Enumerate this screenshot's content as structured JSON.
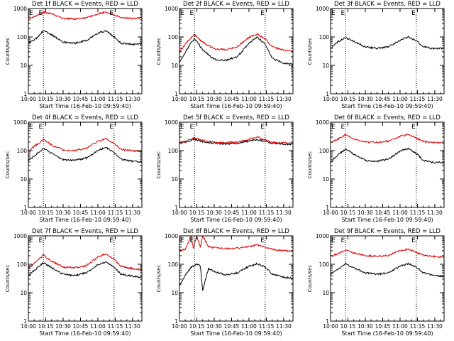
{
  "figure": {
    "background": "#ffffff",
    "axis_color": "#000000",
    "events_color": "#000000",
    "lld_color": "#dd0000"
  },
  "chart_data": [
    {
      "type": "line",
      "title": "Det 1f BLACK = Events, RED = LLD",
      "xlabel": "Start Time (16-Feb-10 09:59:40)",
      "ylabel": "Counts/sec",
      "xlim": [
        "10:00",
        "11:38"
      ],
      "ylim": [
        1,
        1000
      ],
      "yscale": "log",
      "x_ticks": [
        "10:00",
        "10:15",
        "10:30",
        "10:45",
        "11:00",
        "11:15",
        "11:30"
      ],
      "y_ticks": [
        "1",
        "10",
        "100",
        "1000"
      ],
      "markers": [
        {
          "time": "10:13",
          "label": "E"
        },
        {
          "time": "11:14",
          "label": "E"
        }
      ],
      "series": [
        {
          "name": "Events",
          "color": "#000000",
          "x": [
            "10:00",
            "10:07",
            "10:13",
            "10:20",
            "10:30",
            "10:40",
            "10:50",
            "11:00",
            "11:07",
            "11:14",
            "11:20",
            "11:30",
            "11:38"
          ],
          "values": [
            60,
            90,
            170,
            120,
            65,
            60,
            75,
            135,
            165,
            100,
            60,
            55,
            58
          ]
        },
        {
          "name": "LLD",
          "color": "#dd0000",
          "x": [
            "10:00",
            "10:07",
            "10:13",
            "10:20",
            "10:30",
            "10:40",
            "10:50",
            "11:00",
            "11:07",
            "11:14",
            "11:20",
            "11:30",
            "11:38"
          ],
          "values": [
            450,
            550,
            750,
            650,
            450,
            430,
            470,
            650,
            760,
            600,
            480,
            450,
            460
          ]
        }
      ]
    },
    {
      "type": "line",
      "title": "Det 2f BLACK = Events, RED = LLD",
      "xlabel": "Start Time (16-Feb-10 09:59:40)",
      "ylabel": "Counts/sec",
      "xlim": [
        "10:00",
        "11:38"
      ],
      "ylim": [
        1,
        1000
      ],
      "yscale": "log",
      "x_ticks": [
        "10:00",
        "10:15",
        "10:30",
        "10:45",
        "11:00",
        "11:15",
        "11:30"
      ],
      "y_ticks": [
        "1",
        "10",
        "100",
        "1000"
      ],
      "markers": [
        {
          "time": "10:13",
          "label": "E"
        },
        {
          "time": "11:14",
          "label": "E"
        }
      ],
      "series": [
        {
          "name": "Events",
          "color": "#000000",
          "x": [
            "10:00",
            "10:07",
            "10:13",
            "10:20",
            "10:30",
            "10:40",
            "10:50",
            "11:00",
            "11:07",
            "11:14",
            "11:20",
            "11:30",
            "11:38"
          ],
          "values": [
            12,
            40,
            90,
            35,
            16,
            15,
            20,
            60,
            100,
            55,
            18,
            12,
            11
          ]
        },
        {
          "name": "LLD",
          "color": "#dd0000",
          "x": [
            "10:00",
            "10:07",
            "10:13",
            "10:20",
            "10:30",
            "10:40",
            "10:50",
            "11:00",
            "11:07",
            "11:14",
            "11:20",
            "11:30",
            "11:38"
          ],
          "values": [
            30,
            70,
            120,
            65,
            38,
            35,
            45,
            95,
            130,
            85,
            45,
            34,
            32
          ]
        }
      ]
    },
    {
      "type": "line",
      "title": "Det 3f BLACK = Events, RED = LLD",
      "xlabel": "Start Time (16-Feb-10 09:59:40)",
      "ylabel": "Counts/sec",
      "xlim": [
        "10:00",
        "11:38"
      ],
      "ylim": [
        1,
        1000
      ],
      "yscale": "log",
      "x_ticks": [
        "10:00",
        "10:15",
        "10:30",
        "10:45",
        "11:00",
        "11:15",
        "11:30"
      ],
      "y_ticks": [
        "1",
        "10",
        "100",
        "1000"
      ],
      "markers": [
        {
          "time": "10:13",
          "label": "E"
        },
        {
          "time": "11:14",
          "label": "E"
        }
      ],
      "series": [
        {
          "name": "Events",
          "color": "#000000",
          "x": [
            "10:00",
            "10:07",
            "10:13",
            "10:20",
            "10:30",
            "10:40",
            "10:50",
            "11:00",
            "11:07",
            "11:14",
            "11:20",
            "11:30",
            "11:38"
          ],
          "values": [
            40,
            70,
            95,
            70,
            45,
            40,
            45,
            75,
            100,
            75,
            45,
            38,
            40
          ]
        }
      ]
    },
    {
      "type": "line",
      "title": "Det 4f BLACK = Events, RED = LLD",
      "xlabel": "Start Time (16-Feb-10 09:59:40)",
      "ylabel": "Counts/sec",
      "xlim": [
        "10:00",
        "11:38"
      ],
      "ylim": [
        1,
        1000
      ],
      "yscale": "log",
      "x_ticks": [
        "10:00",
        "10:15",
        "10:30",
        "10:45",
        "11:00",
        "11:15",
        "11:30"
      ],
      "y_ticks": [
        "1",
        "10",
        "100",
        "1000"
      ],
      "markers": [
        {
          "time": "10:13",
          "label": "E"
        },
        {
          "time": "11:14",
          "label": "E"
        }
      ],
      "series": [
        {
          "name": "Events",
          "color": "#000000",
          "x": [
            "10:00",
            "10:07",
            "10:13",
            "10:20",
            "10:30",
            "10:40",
            "10:50",
            "11:00",
            "11:07",
            "11:14",
            "11:20",
            "11:30",
            "11:38"
          ],
          "values": [
            45,
            75,
            120,
            80,
            48,
            45,
            55,
            100,
            130,
            85,
            50,
            42,
            40
          ]
        },
        {
          "name": "LLD",
          "color": "#dd0000",
          "x": [
            "10:00",
            "10:07",
            "10:13",
            "10:20",
            "10:30",
            "10:40",
            "10:50",
            "11:00",
            "11:07",
            "11:14",
            "11:20",
            "11:30",
            "11:38"
          ],
          "values": [
            100,
            160,
            240,
            160,
            105,
            100,
            120,
            210,
            260,
            180,
            110,
            100,
            95
          ]
        }
      ]
    },
    {
      "type": "line",
      "title": "Det 5f BLACK = Events, RED = LLD",
      "xlabel": "Start Time (16-Feb-10 09:59:40)",
      "ylabel": "Counts/sec",
      "xlim": [
        "10:00",
        "11:38"
      ],
      "ylim": [
        1,
        1000
      ],
      "yscale": "log",
      "x_ticks": [
        "10:00",
        "10:15",
        "10:30",
        "10:45",
        "11:00",
        "11:15",
        "11:30"
      ],
      "y_ticks": [
        "1",
        "10",
        "100",
        "1000"
      ],
      "markers": [
        {
          "time": "10:13",
          "label": "E"
        },
        {
          "time": "11:14",
          "label": "E"
        }
      ],
      "series": [
        {
          "name": "Events",
          "color": "#000000",
          "x": [
            "10:00",
            "10:07",
            "10:13",
            "10:20",
            "10:30",
            "10:40",
            "10:50",
            "11:00",
            "11:07",
            "11:14",
            "11:20",
            "11:30",
            "11:38"
          ],
          "values": [
            180,
            210,
            250,
            210,
            180,
            175,
            180,
            220,
            250,
            210,
            180,
            170,
            165
          ]
        },
        {
          "name": "LLD",
          "color": "#dd0000",
          "x": [
            "10:00",
            "10:07",
            "10:13",
            "10:20",
            "10:30",
            "10:40",
            "10:50",
            "11:00",
            "11:07",
            "11:14",
            "11:20",
            "11:30",
            "11:38"
          ],
          "values": [
            190,
            230,
            280,
            230,
            195,
            190,
            200,
            250,
            300,
            240,
            195,
            185,
            180
          ]
        }
      ]
    },
    {
      "type": "line",
      "title": "Det 6f BLACK = Events, RED = LLD",
      "xlabel": "Start Time (16-Feb-10 09:59:40)",
      "ylabel": "Counts/sec",
      "xlim": [
        "10:00",
        "11:38"
      ],
      "ylim": [
        1,
        1000
      ],
      "yscale": "log",
      "x_ticks": [
        "10:00",
        "10:15",
        "10:30",
        "10:45",
        "11:00",
        "11:15",
        "11:30"
      ],
      "y_ticks": [
        "1",
        "10",
        "100",
        "1000"
      ],
      "markers": [
        {
          "time": "10:13",
          "label": "E"
        },
        {
          "time": "11:14",
          "label": "E"
        }
      ],
      "series": [
        {
          "name": "Events",
          "color": "#000000",
          "x": [
            "10:00",
            "10:07",
            "10:13",
            "10:20",
            "10:30",
            "10:40",
            "10:50",
            "11:00",
            "11:07",
            "11:14",
            "11:20",
            "11:30",
            "11:38"
          ],
          "values": [
            40,
            75,
            115,
            75,
            45,
            42,
            50,
            95,
            120,
            80,
            45,
            38,
            38
          ]
        },
        {
          "name": "LLD",
          "color": "#dd0000",
          "x": [
            "10:00",
            "10:07",
            "10:13",
            "10:20",
            "10:30",
            "10:40",
            "10:50",
            "11:00",
            "11:07",
            "11:14",
            "11:20",
            "11:30",
            "11:38"
          ],
          "values": [
            190,
            260,
            360,
            260,
            200,
            195,
            215,
            320,
            370,
            280,
            210,
            190,
            185
          ]
        }
      ]
    },
    {
      "type": "line",
      "title": "Det 7f BLACK = Events, RED = LLD",
      "xlabel": "Start Time (16-Feb-10 09:59:40)",
      "ylabel": "Counts/sec",
      "xlim": [
        "10:00",
        "11:38"
      ],
      "ylim": [
        1,
        1000
      ],
      "yscale": "log",
      "x_ticks": [
        "10:00",
        "10:15",
        "10:30",
        "10:45",
        "11:00",
        "11:15",
        "11:30"
      ],
      "y_ticks": [
        "1",
        "10",
        "100",
        "1000"
      ],
      "markers": [
        {
          "time": "10:13",
          "label": "E"
        },
        {
          "time": "11:14",
          "label": "E"
        }
      ],
      "series": [
        {
          "name": "Events",
          "color": "#000000",
          "x": [
            "10:00",
            "10:07",
            "10:13",
            "10:20",
            "10:30",
            "10:40",
            "10:50",
            "11:00",
            "11:07",
            "11:14",
            "11:20",
            "11:30",
            "11:38"
          ],
          "values": [
            40,
            70,
            115,
            75,
            45,
            40,
            50,
            95,
            120,
            80,
            45,
            38,
            35
          ]
        },
        {
          "name": "LLD",
          "color": "#dd0000",
          "x": [
            "10:00",
            "10:07",
            "10:13",
            "10:20",
            "10:30",
            "10:40",
            "10:50",
            "11:00",
            "11:07",
            "11:14",
            "11:20",
            "11:30",
            "11:38"
          ],
          "values": [
            70,
            130,
            210,
            130,
            80,
            75,
            90,
            180,
            240,
            150,
            85,
            70,
            65
          ]
        }
      ]
    },
    {
      "type": "line",
      "title": "Det 8f BLACK = Events, RED = LLD",
      "xlabel": "Start Time (16-Feb-10 09:59:40)",
      "ylabel": "Counts/sec",
      "xlim": [
        "10:00",
        "11:38"
      ],
      "ylim": [
        1,
        1000
      ],
      "yscale": "log",
      "x_ticks": [
        "10:00",
        "10:15",
        "10:30",
        "10:45",
        "11:00",
        "11:15",
        "11:30"
      ],
      "y_ticks": [
        "1",
        "10",
        "100",
        "1000"
      ],
      "markers": [
        {
          "time": "10:13",
          "label": "E"
        },
        {
          "time": "11:14",
          "label": "E"
        }
      ],
      "series": [
        {
          "name": "Events",
          "color": "#000000",
          "x": [
            "10:00",
            "10:05",
            "10:10",
            "10:15",
            "10:18",
            "10:20",
            "10:25",
            "10:30",
            "10:40",
            "10:50",
            "11:00",
            "11:07",
            "11:14",
            "11:20",
            "11:30",
            "11:38"
          ],
          "values": [
            18,
            40,
            80,
            100,
            90,
            12,
            70,
            55,
            42,
            50,
            85,
            105,
            80,
            45,
            35,
            32
          ]
        },
        {
          "name": "LLD",
          "color": "#dd0000",
          "x": [
            "10:00",
            "10:05",
            "10:10",
            "10:12",
            "10:15",
            "10:18",
            "10:20",
            "10:25",
            "10:30",
            "10:40",
            "10:50",
            "11:00",
            "11:07",
            "11:14",
            "11:20",
            "11:30",
            "11:38"
          ],
          "values": [
            300,
            330,
            1000,
            360,
            1000,
            380,
            1000,
            420,
            380,
            360,
            370,
            420,
            480,
            400,
            340,
            300,
            290
          ]
        }
      ]
    },
    {
      "type": "line",
      "title": "Det 9f BLACK = Events, RED = LLD",
      "xlabel": "Start Time (16-Feb-10 09:59:40)",
      "ylabel": "Counts/sec",
      "xlim": [
        "10:00",
        "11:38"
      ],
      "ylim": [
        1,
        1000
      ],
      "yscale": "log",
      "x_ticks": [
        "10:00",
        "10:15",
        "10:30",
        "10:45",
        "11:00",
        "11:15",
        "11:30"
      ],
      "y_ticks": [
        "1",
        "10",
        "100",
        "1000"
      ],
      "markers": [
        {
          "time": "10:13",
          "label": "E"
        },
        {
          "time": "11:14",
          "label": "E"
        }
      ],
      "series": [
        {
          "name": "Events",
          "color": "#000000",
          "x": [
            "10:00",
            "10:07",
            "10:13",
            "10:20",
            "10:30",
            "10:40",
            "10:50",
            "11:00",
            "11:07",
            "11:14",
            "11:20",
            "11:30",
            "11:38"
          ],
          "values": [
            45,
            70,
            105,
            75,
            50,
            45,
            50,
            85,
            105,
            80,
            50,
            40,
            38
          ]
        },
        {
          "name": "LLD",
          "color": "#dd0000",
          "x": [
            "10:00",
            "10:07",
            "10:13",
            "10:20",
            "10:30",
            "10:40",
            "10:50",
            "11:00",
            "11:07",
            "11:14",
            "11:20",
            "11:30",
            "11:38"
          ],
          "values": [
            190,
            240,
            320,
            250,
            200,
            195,
            205,
            300,
            340,
            260,
            210,
            185,
            180
          ]
        }
      ]
    }
  ]
}
